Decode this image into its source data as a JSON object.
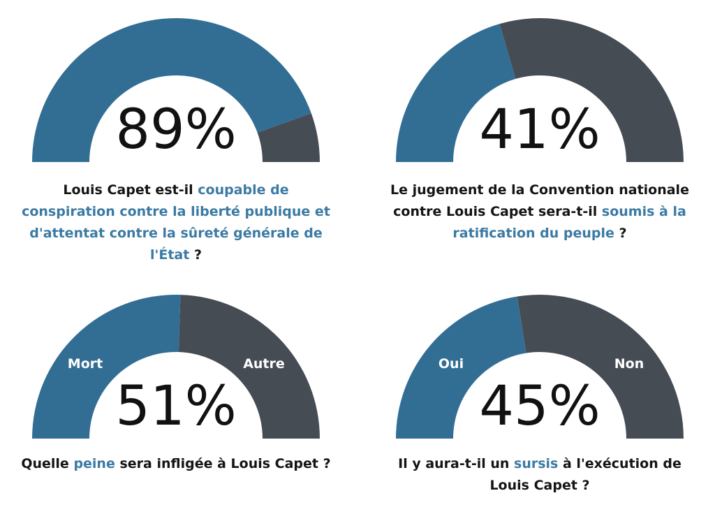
{
  "colors": {
    "primary": "#326e94",
    "secondary": "#464c54",
    "highlight_text": "#3b7aa3",
    "text": "#141414"
  },
  "chart_data": [
    {
      "type": "gauge",
      "value": 89,
      "display": "89%",
      "labels": {
        "left": "",
        "right": ""
      },
      "question": {
        "pre": "Louis Capet est-il ",
        "highlight": "coupable de conspiration contre la liberté publique et d'attentat contre la sûreté générale de l'État",
        "post": " ?"
      }
    },
    {
      "type": "gauge",
      "value": 41,
      "display": "41%",
      "labels": {
        "left": "",
        "right": ""
      },
      "question": {
        "pre": "Le jugement de la Convention nationale contre Louis Capet sera-t-il ",
        "highlight": "soumis à la ratification du peuple",
        "post": " ?"
      }
    },
    {
      "type": "gauge",
      "value": 51,
      "display": "51%",
      "labels": {
        "left": "Mort",
        "right": "Autre"
      },
      "question": {
        "pre": "Quelle ",
        "highlight": "peine",
        "post": " sera infligée à Louis Capet ?"
      }
    },
    {
      "type": "gauge",
      "value": 45,
      "display": "45%",
      "labels": {
        "left": "Oui",
        "right": "Non"
      },
      "question": {
        "pre": "Il y aura-t-il un ",
        "highlight": "sursis",
        "post": " à l'exécution de Louis Capet ?"
      }
    }
  ]
}
